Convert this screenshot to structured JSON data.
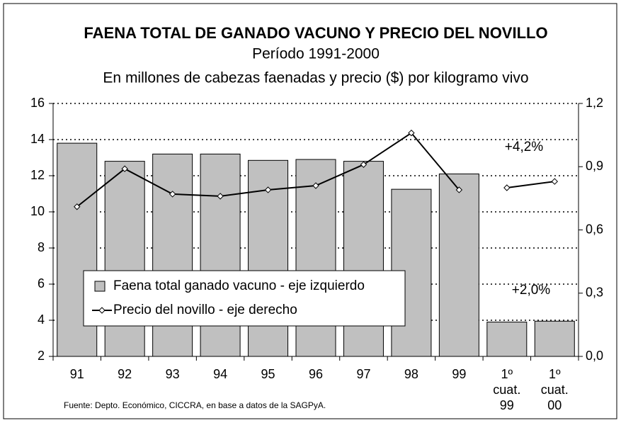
{
  "chart_data": {
    "type": "bar_line",
    "title": "FAENA TOTAL DE GANADO VACUNO Y PRECIO DEL NOVILLO",
    "subtitle": "Período 1991-2000",
    "subtitle2": "En millones de cabezas faenadas y precio ($) por kilogramo vivo",
    "categories": [
      "91",
      "92",
      "93",
      "94",
      "95",
      "96",
      "97",
      "98",
      "99",
      "1º cuat. 99",
      "1º cuat. 00"
    ],
    "series": [
      {
        "name": "Faena total ganado vacuno - eje izquierdo",
        "type": "bar",
        "color": "#c0c0c0",
        "values": [
          13.8,
          12.8,
          13.2,
          13.2,
          12.85,
          12.9,
          12.8,
          11.25,
          12.1,
          3.9,
          3.95
        ]
      },
      {
        "name": "Precio del novillo - eje derecho",
        "type": "line",
        "axis": "y2",
        "color": "#000000",
        "values": [
          0.71,
          0.89,
          0.77,
          0.76,
          0.79,
          0.81,
          0.91,
          1.06,
          0.79,
          0.8,
          0.83
        ]
      }
    ],
    "line_breaks": [
      9
    ],
    "ylim": [
      2,
      16
    ],
    "yticks": [
      2,
      4,
      6,
      8,
      10,
      12,
      14,
      16
    ],
    "y2lim": [
      0,
      1.2
    ],
    "y2ticks": [
      {
        "value": 0,
        "label": "0,0"
      },
      {
        "value": 0.3,
        "label": "0,3"
      },
      {
        "value": 0.6,
        "label": "0,6"
      },
      {
        "value": 0.9,
        "label": "0,9"
      },
      {
        "value": 1.2,
        "label": "1,2"
      }
    ],
    "grid": true,
    "annotations": [
      "+4,2%",
      "+2,0%"
    ],
    "source": "Fuente: Depto. Económico, CICCRA, en base a datos de la SAGPyA."
  }
}
